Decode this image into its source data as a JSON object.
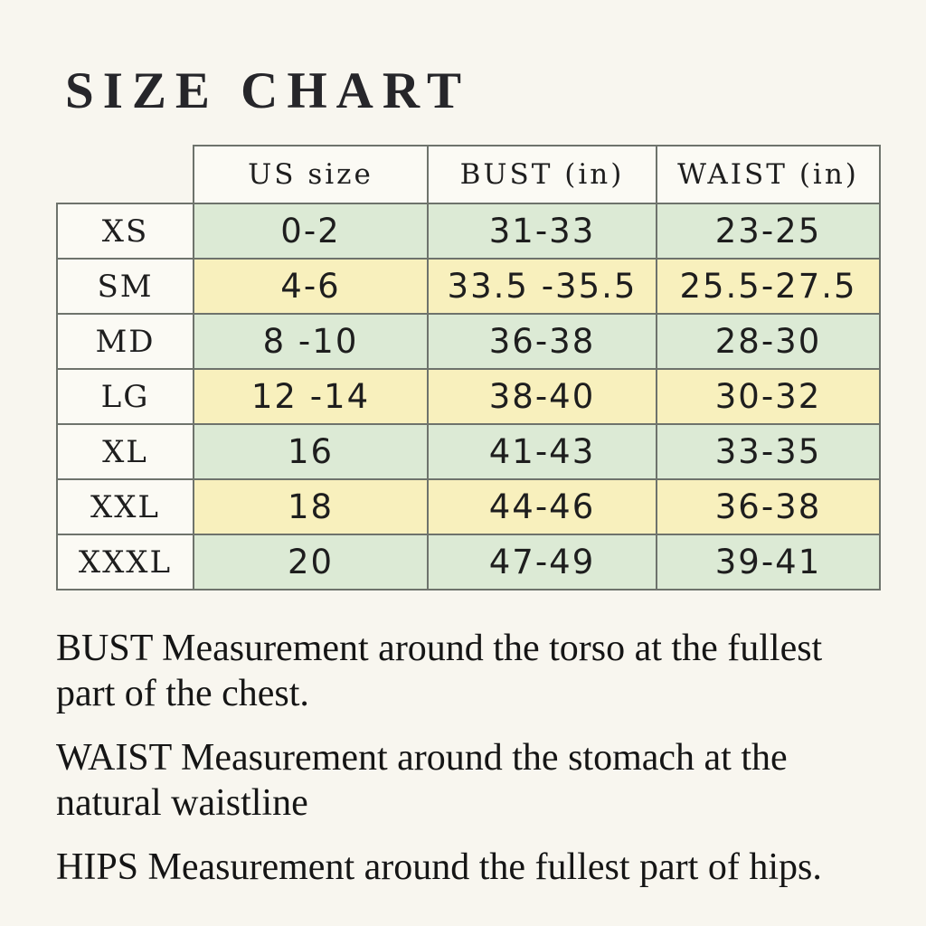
{
  "title": "SIZE CHART",
  "table": {
    "columns": [
      "US size",
      "BUST (in)",
      "WAIST (in)"
    ],
    "rows": [
      {
        "size": "XS",
        "us": "0-2",
        "bust": "31-33",
        "waist": "23-25",
        "tint": "green"
      },
      {
        "size": "SM",
        "us": "4-6",
        "bust": "33.5 -35.5",
        "waist": "25.5-27.5",
        "tint": "yellow"
      },
      {
        "size": "MD",
        "us": "8 -10",
        "bust": "36-38",
        "waist": "28-30",
        "tint": "green"
      },
      {
        "size": "LG",
        "us": "12 -14",
        "bust": "38-40",
        "waist": "30-32",
        "tint": "yellow"
      },
      {
        "size": "XL",
        "us": "16",
        "bust": "41-43",
        "waist": "33-35",
        "tint": "green"
      },
      {
        "size": "XXL",
        "us": "18",
        "bust": "44-46",
        "waist": "36-38",
        "tint": "yellow"
      },
      {
        "size": "XXXL",
        "us": "20",
        "bust": "47-49",
        "waist": "39-41",
        "tint": "green"
      }
    ]
  },
  "notes": [
    {
      "lines": [
        "BUST Measurement around the torso at the fullest",
        "part of the chest."
      ]
    },
    {
      "lines": [
        "WAIST Measurement around the stomach at the",
        "natural waistline"
      ]
    },
    {
      "lines": [
        "HIPS Measurement around the fullest part of hips."
      ]
    }
  ],
  "colors": {
    "background": "#f8f6ef",
    "cell": "#fbfaf4",
    "green": "#dcead5",
    "yellow": "#f8f0bd",
    "border": "#6e736c",
    "text": "#1e1e1e",
    "title": "#26262a"
  }
}
